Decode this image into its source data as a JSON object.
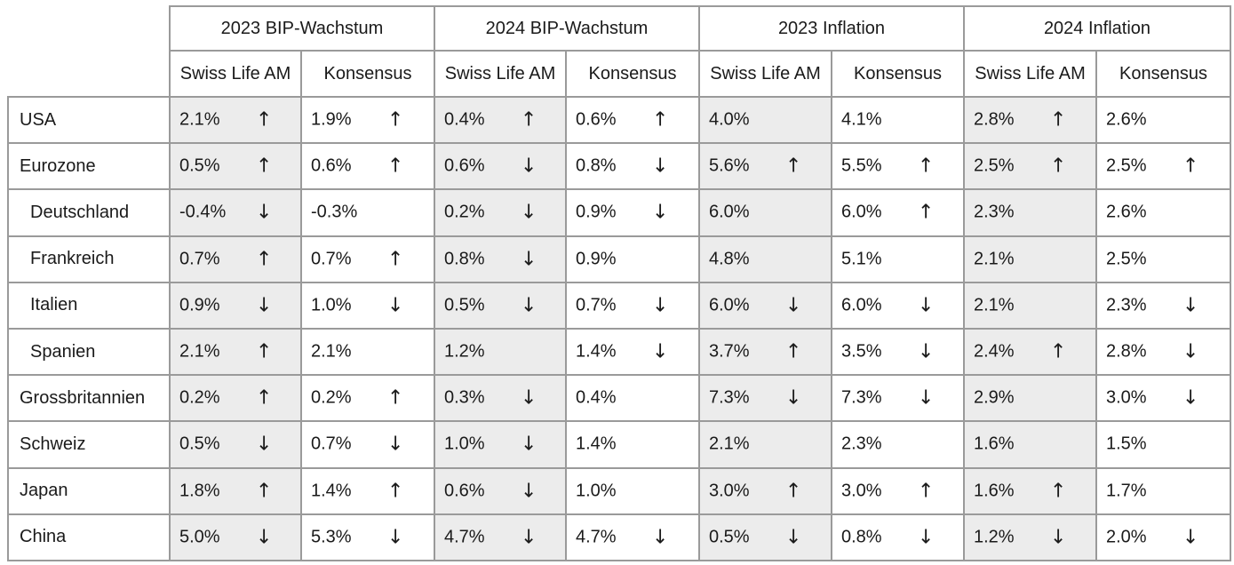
{
  "groups": [
    {
      "title": "2023 BIP-Wachstum",
      "sub": [
        "Swiss Life AM",
        "Konsensus"
      ]
    },
    {
      "title": "2024 BIP-Wachstum",
      "sub": [
        "Swiss Life AM",
        "Konsensus"
      ]
    },
    {
      "title": "2023 Inflation",
      "sub": [
        "Swiss Life AM",
        "Konsensus"
      ]
    },
    {
      "title": "2024 Inflation",
      "sub": [
        "Swiss Life AM",
        "Konsensus"
      ]
    }
  ],
  "rows": [
    {
      "label": "USA",
      "indent": false,
      "cells": [
        {
          "v": "2.1%",
          "a": "up"
        },
        {
          "v": "1.9%",
          "a": "up"
        },
        {
          "v": "0.4%",
          "a": "up"
        },
        {
          "v": "0.6%",
          "a": "up"
        },
        {
          "v": "4.0%",
          "a": ""
        },
        {
          "v": "4.1%",
          "a": ""
        },
        {
          "v": "2.8%",
          "a": "up"
        },
        {
          "v": "2.6%",
          "a": ""
        }
      ]
    },
    {
      "label": "Eurozone",
      "indent": false,
      "cells": [
        {
          "v": "0.5%",
          "a": "up"
        },
        {
          "v": "0.6%",
          "a": "up"
        },
        {
          "v": "0.6%",
          "a": "down"
        },
        {
          "v": "0.8%",
          "a": "down"
        },
        {
          "v": "5.6%",
          "a": "up"
        },
        {
          "v": "5.5%",
          "a": "up"
        },
        {
          "v": "2.5%",
          "a": "up"
        },
        {
          "v": "2.5%",
          "a": "up"
        }
      ]
    },
    {
      "label": "Deutschland",
      "indent": true,
      "cells": [
        {
          "v": "-0.4%",
          "a": "down"
        },
        {
          "v": "-0.3%",
          "a": ""
        },
        {
          "v": "0.2%",
          "a": "down"
        },
        {
          "v": "0.9%",
          "a": "down"
        },
        {
          "v": "6.0%",
          "a": ""
        },
        {
          "v": "6.0%",
          "a": "up"
        },
        {
          "v": "2.3%",
          "a": ""
        },
        {
          "v": "2.6%",
          "a": ""
        }
      ]
    },
    {
      "label": "Frankreich",
      "indent": true,
      "cells": [
        {
          "v": "0.7%",
          "a": "up"
        },
        {
          "v": "0.7%",
          "a": "up"
        },
        {
          "v": "0.8%",
          "a": "down"
        },
        {
          "v": "0.9%",
          "a": ""
        },
        {
          "v": "4.8%",
          "a": ""
        },
        {
          "v": "5.1%",
          "a": ""
        },
        {
          "v": "2.1%",
          "a": ""
        },
        {
          "v": "2.5%",
          "a": ""
        }
      ]
    },
    {
      "label": "Italien",
      "indent": true,
      "cells": [
        {
          "v": "0.9%",
          "a": "down"
        },
        {
          "v": "1.0%",
          "a": "down"
        },
        {
          "v": "0.5%",
          "a": "down"
        },
        {
          "v": "0.7%",
          "a": "down"
        },
        {
          "v": "6.0%",
          "a": "down"
        },
        {
          "v": "6.0%",
          "a": "down"
        },
        {
          "v": "2.1%",
          "a": ""
        },
        {
          "v": "2.3%",
          "a": "down"
        }
      ]
    },
    {
      "label": "Spanien",
      "indent": true,
      "cells": [
        {
          "v": "2.1%",
          "a": "up"
        },
        {
          "v": "2.1%",
          "a": ""
        },
        {
          "v": "1.2%",
          "a": ""
        },
        {
          "v": "1.4%",
          "a": "down"
        },
        {
          "v": "3.7%",
          "a": "up"
        },
        {
          "v": "3.5%",
          "a": "down"
        },
        {
          "v": "2.4%",
          "a": "up"
        },
        {
          "v": "2.8%",
          "a": "down"
        }
      ]
    },
    {
      "label": "Grossbritannien",
      "indent": false,
      "cells": [
        {
          "v": "0.2%",
          "a": "up"
        },
        {
          "v": "0.2%",
          "a": "up"
        },
        {
          "v": "0.3%",
          "a": "down"
        },
        {
          "v": "0.4%",
          "a": ""
        },
        {
          "v": "7.3%",
          "a": "down"
        },
        {
          "v": "7.3%",
          "a": "down"
        },
        {
          "v": "2.9%",
          "a": ""
        },
        {
          "v": "3.0%",
          "a": "down"
        }
      ]
    },
    {
      "label": "Schweiz",
      "indent": false,
      "cells": [
        {
          "v": "0.5%",
          "a": "down"
        },
        {
          "v": "0.7%",
          "a": "down"
        },
        {
          "v": "1.0%",
          "a": "down"
        },
        {
          "v": "1.4%",
          "a": ""
        },
        {
          "v": "2.1%",
          "a": ""
        },
        {
          "v": "2.3%",
          "a": ""
        },
        {
          "v": "1.6%",
          "a": ""
        },
        {
          "v": "1.5%",
          "a": ""
        }
      ]
    },
    {
      "label": "Japan",
      "indent": false,
      "cells": [
        {
          "v": "1.8%",
          "a": "up"
        },
        {
          "v": "1.4%",
          "a": "up"
        },
        {
          "v": "0.6%",
          "a": "down"
        },
        {
          "v": "1.0%",
          "a": ""
        },
        {
          "v": "3.0%",
          "a": "up"
        },
        {
          "v": "3.0%",
          "a": "up"
        },
        {
          "v": "1.6%",
          "a": "up"
        },
        {
          "v": "1.7%",
          "a": ""
        }
      ]
    },
    {
      "label": "China",
      "indent": false,
      "cells": [
        {
          "v": "5.0%",
          "a": "down"
        },
        {
          "v": "5.3%",
          "a": "down"
        },
        {
          "v": "4.7%",
          "a": "down"
        },
        {
          "v": "4.7%",
          "a": "down"
        },
        {
          "v": "0.5%",
          "a": "down"
        },
        {
          "v": "0.8%",
          "a": "down"
        },
        {
          "v": "1.2%",
          "a": "down"
        },
        {
          "v": "2.0%",
          "a": "down"
        }
      ]
    }
  ],
  "icons": {
    "up": "arrow-up-icon",
    "down": "arrow-down-icon"
  }
}
